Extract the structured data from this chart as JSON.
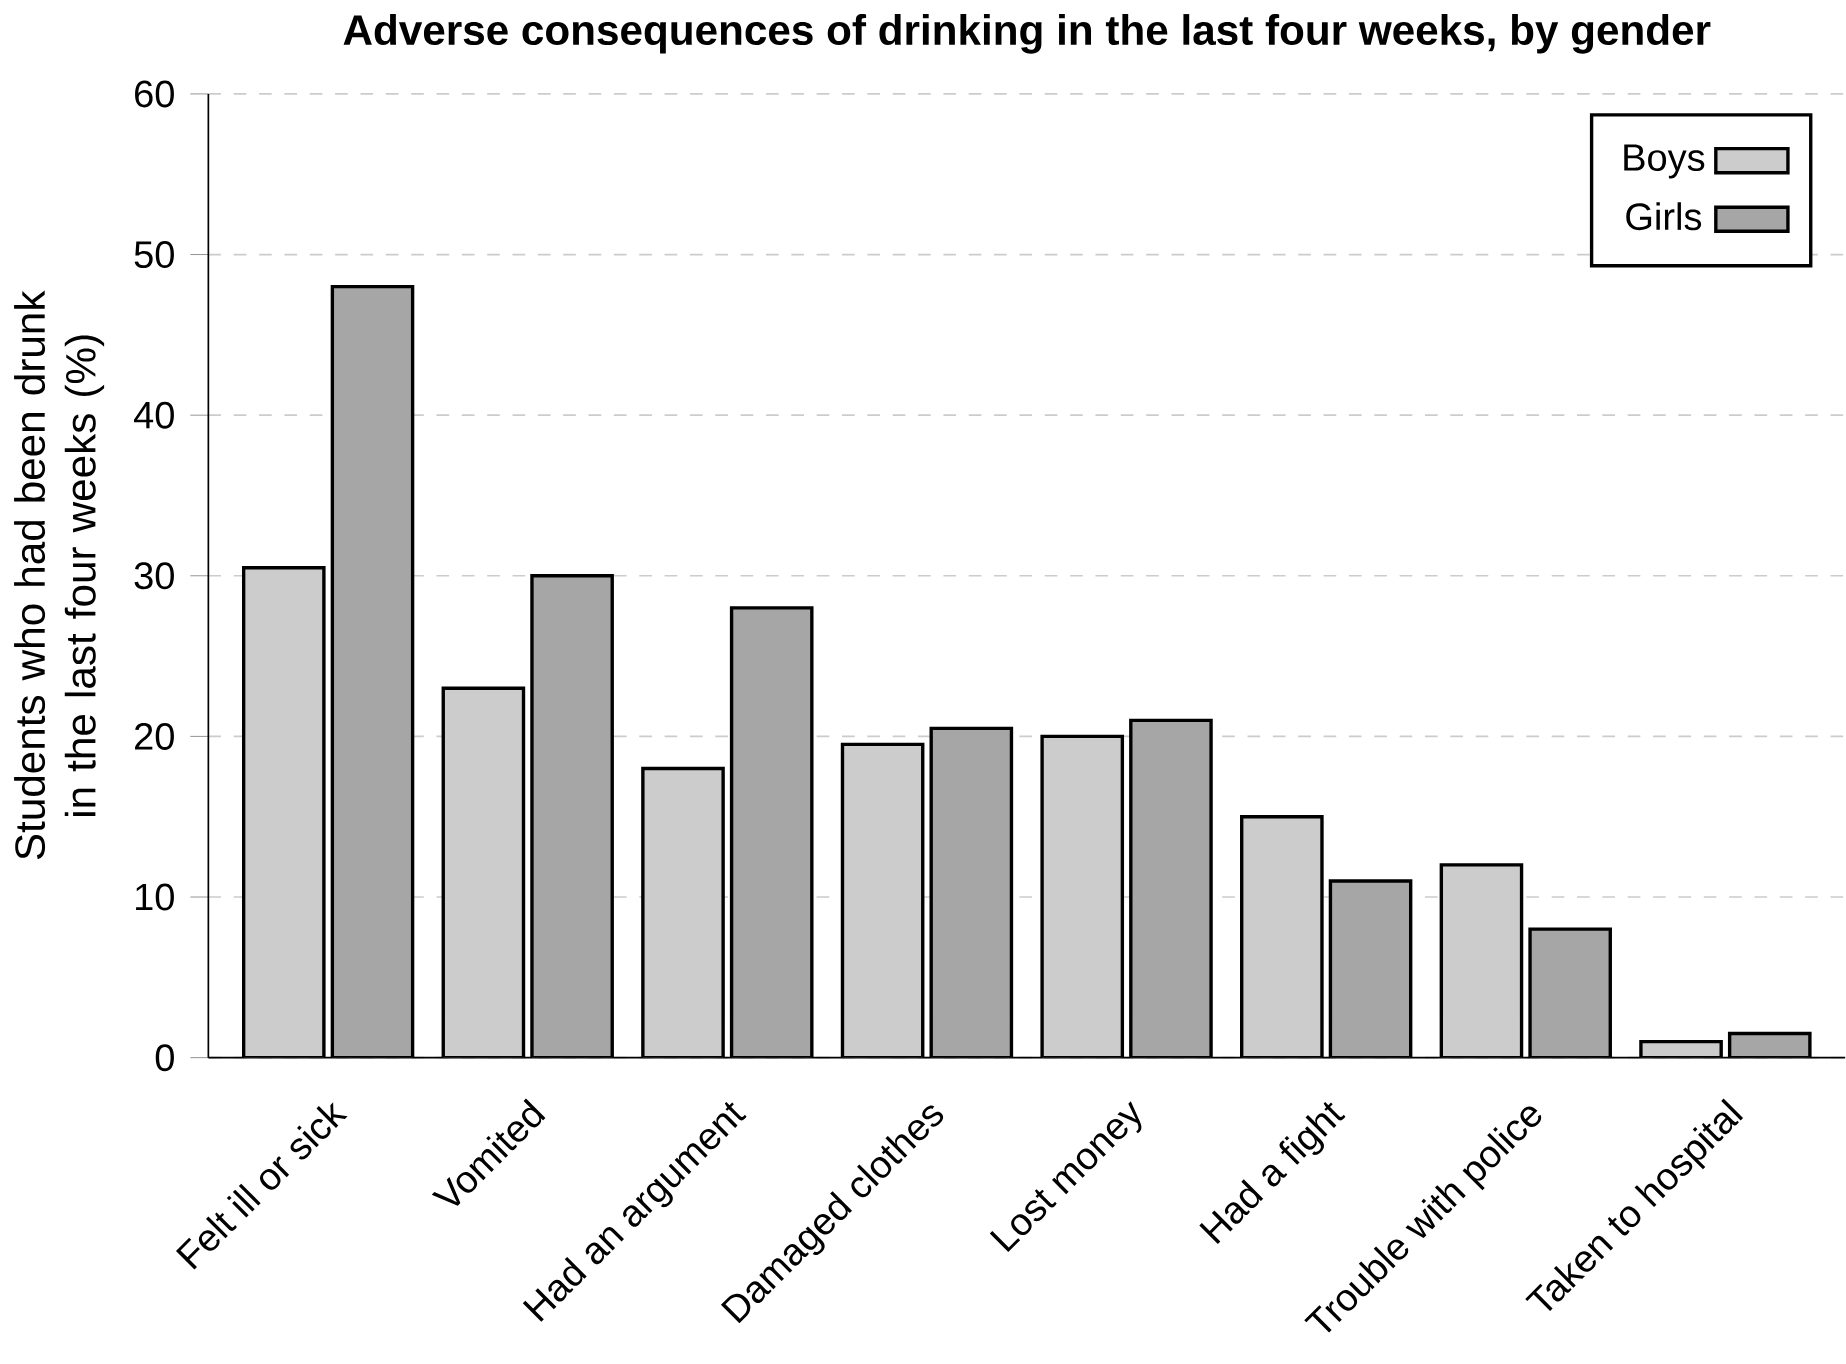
{
  "chart_data": {
    "type": "bar",
    "title": "Adverse consequences of drinking in the last four weeks, by gender",
    "ylabel": "Students who had been drunk in the last four weeks (%)",
    "categories": [
      "Felt ill or sick",
      "Vomited",
      "Had an argument",
      "Damaged clothes",
      "Lost money",
      "Had a fight",
      "Trouble with police",
      "Taken to hospital"
    ],
    "series": [
      {
        "name": "Boys",
        "color": "#cccccc",
        "values": [
          30.5,
          23,
          18,
          19.5,
          20,
          15,
          12,
          1
        ]
      },
      {
        "name": "Girls",
        "color": "#a6a6a6",
        "values": [
          48,
          30,
          28,
          20.5,
          21,
          11,
          8,
          1.5
        ]
      }
    ],
    "ylim": [
      0,
      60
    ],
    "yticks": [
      0,
      10,
      20,
      30,
      40,
      50,
      60
    ],
    "grid": "y",
    "legend": "top right"
  }
}
